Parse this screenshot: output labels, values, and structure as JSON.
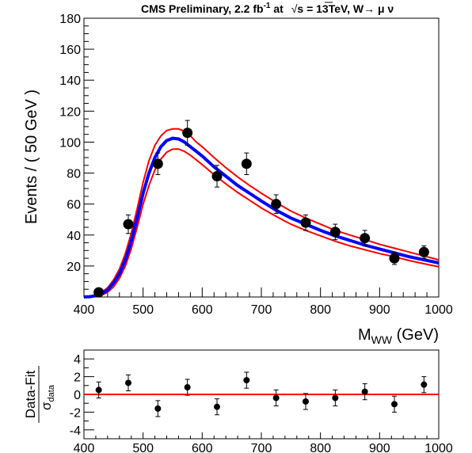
{
  "chart_data": [
    {
      "type": "scatter",
      "title_parts": {
        "prefix": "CMS Preliminary, 2.2 fb",
        "sup": "-1",
        "mid": " at ",
        "sqrt": "√",
        "s_energy": "s = 13TeV, W→ μ ν"
      },
      "xlabel": {
        "main": "M",
        "sub": "WW",
        "rest": " (GeV)"
      },
      "ylabel": "Events / ( 50 GeV )",
      "xlim": [
        400,
        1000
      ],
      "ylim": [
        0,
        180
      ],
      "x_ticks": [
        400,
        500,
        600,
        700,
        800,
        900,
        1000
      ],
      "y_ticks": [
        20,
        40,
        60,
        80,
        100,
        120,
        140,
        160,
        180
      ],
      "grid": false,
      "points": [
        {
          "x": 425,
          "y": 3,
          "err": 1.5
        },
        {
          "x": 475,
          "y": 47,
          "err": 6
        },
        {
          "x": 525,
          "y": 86,
          "err": 7
        },
        {
          "x": 575,
          "y": 106,
          "err": 8
        },
        {
          "x": 625,
          "y": 78,
          "err": 7
        },
        {
          "x": 675,
          "y": 86,
          "err": 7
        },
        {
          "x": 725,
          "y": 60,
          "err": 6
        },
        {
          "x": 775,
          "y": 48,
          "err": 5
        },
        {
          "x": 825,
          "y": 42,
          "err": 5
        },
        {
          "x": 875,
          "y": 38,
          "err": 5
        },
        {
          "x": 925,
          "y": 25,
          "err": 4
        },
        {
          "x": 975,
          "y": 29,
          "err": 4
        }
      ],
      "fit_curve": {
        "x": [
          400,
          410,
          420,
          430,
          440,
          450,
          460,
          470,
          480,
          490,
          500,
          510,
          520,
          530,
          540,
          550,
          560,
          570,
          580,
          590,
          600,
          620,
          640,
          660,
          680,
          700,
          725,
          750,
          775,
          800,
          825,
          850,
          875,
          900,
          925,
          950,
          975,
          1000
        ],
        "y": [
          0,
          0.2,
          0.8,
          2,
          4.5,
          9,
          15,
          24,
          36,
          51,
          67,
          80,
          90,
          97,
          101,
          102.5,
          102,
          100,
          97,
          94,
          91,
          84,
          78,
          72,
          67,
          62,
          56,
          51,
          47,
          43,
          39.5,
          36.5,
          33.5,
          31,
          28.5,
          26,
          24,
          22
        ],
        "color": "#0000ff"
      },
      "band_upper": {
        "x": [
          400,
          410,
          420,
          430,
          440,
          450,
          460,
          470,
          480,
          490,
          500,
          510,
          520,
          530,
          540,
          550,
          560,
          570,
          580,
          590,
          600,
          620,
          640,
          660,
          680,
          700,
          725,
          750,
          775,
          800,
          825,
          850,
          875,
          900,
          925,
          950,
          975,
          1000
        ],
        "y": [
          0,
          0.3,
          1.2,
          3,
          6,
          11,
          18,
          28,
          41,
          57,
          74,
          88,
          98,
          104,
          107.5,
          108.5,
          108.5,
          107,
          104,
          100,
          97,
          90,
          83.5,
          77.5,
          72,
          67,
          61,
          55.5,
          51,
          47,
          43,
          40,
          37,
          34,
          31.5,
          29,
          26.5,
          24
        ],
        "color": "#ff0000"
      },
      "band_lower": {
        "x": [
          400,
          410,
          420,
          430,
          440,
          450,
          460,
          470,
          480,
          490,
          500,
          510,
          520,
          530,
          540,
          550,
          560,
          570,
          580,
          590,
          600,
          620,
          640,
          660,
          680,
          700,
          725,
          750,
          775,
          800,
          825,
          850,
          875,
          900,
          925,
          950,
          975,
          1000
        ],
        "y": [
          0,
          0.1,
          0.5,
          1.2,
          3,
          6.5,
          12,
          20,
          31,
          45,
          60,
          72,
          82,
          89,
          93.5,
          95.5,
          95.5,
          94,
          91.5,
          88.5,
          85.5,
          79,
          73,
          67.5,
          62.5,
          57.5,
          52,
          47,
          43,
          39.5,
          36,
          33,
          30.5,
          28,
          26,
          23.5,
          21.5,
          19.5
        ],
        "color": "#ff0000"
      }
    },
    {
      "type": "scatter",
      "ylabel": {
        "main": "Data-Fit",
        "denom": "σ",
        "denom_sub": "data"
      },
      "xlim": [
        400,
        1000
      ],
      "ylim": [
        -5,
        5
      ],
      "x_ticks": [
        400,
        500,
        600,
        700,
        800,
        900,
        1000
      ],
      "y_ticks": [
        -4,
        -2,
        0,
        2,
        4
      ],
      "zero_line_color": "#ff0000",
      "points": [
        {
          "x": 425,
          "y": 0.5,
          "err": 0.9
        },
        {
          "x": 475,
          "y": 1.3,
          "err": 0.9
        },
        {
          "x": 525,
          "y": -1.6,
          "err": 0.9
        },
        {
          "x": 575,
          "y": 0.8,
          "err": 0.9
        },
        {
          "x": 625,
          "y": -1.4,
          "err": 0.9
        },
        {
          "x": 675,
          "y": 1.6,
          "err": 0.9
        },
        {
          "x": 725,
          "y": -0.4,
          "err": 0.9
        },
        {
          "x": 775,
          "y": -0.8,
          "err": 0.9
        },
        {
          "x": 825,
          "y": -0.4,
          "err": 0.9
        },
        {
          "x": 875,
          "y": 0.3,
          "err": 0.9
        },
        {
          "x": 925,
          "y": -1.1,
          "err": 0.9
        },
        {
          "x": 975,
          "y": 1.1,
          "err": 0.9
        }
      ]
    }
  ]
}
